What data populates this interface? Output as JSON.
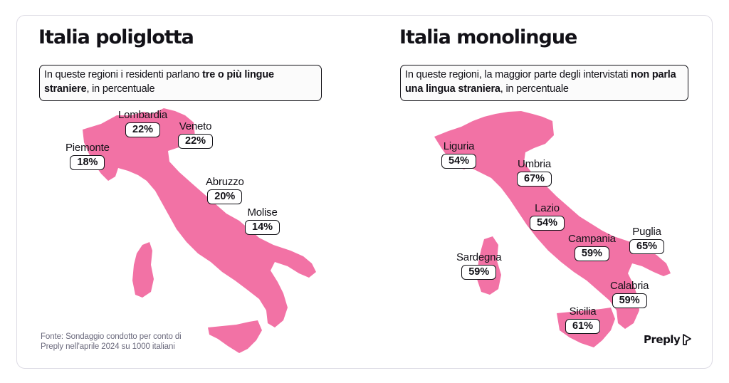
{
  "colors": {
    "map_fill": "#f272a5",
    "text": "#121117",
    "muted": "#6a697c",
    "border": "#dddbe4"
  },
  "left_panel": {
    "title": "Italia poliglotta",
    "note_plain": "In queste regioni i residenti parlano ",
    "note_bold": "tre o più lingue straniere",
    "note_tail": ", in percentuale",
    "regions": [
      {
        "name": "Lombardia",
        "value": "22%"
      },
      {
        "name": "Veneto",
        "value": "22%"
      },
      {
        "name": "Piemonte",
        "value": "18%"
      },
      {
        "name": "Abruzzo",
        "value": "20%"
      },
      {
        "name": "Molise",
        "value": "14%"
      }
    ],
    "source": "Fonte: Sondaggio condotto per conto di Preply nell'aprile 2024 su 1000 italiani"
  },
  "right_panel": {
    "title": "Italia monolingue",
    "note_plain": "In queste regioni, la maggior parte degli intervistati ",
    "note_bold": "non parla una lingua straniera",
    "note_tail": ", in percentuale",
    "regions": [
      {
        "name": "Liguria",
        "value": "54%"
      },
      {
        "name": "Umbria",
        "value": "67%"
      },
      {
        "name": "Lazio",
        "value": "54%"
      },
      {
        "name": "Campania",
        "value": "59%"
      },
      {
        "name": "Puglia",
        "value": "65%"
      },
      {
        "name": "Sardegna",
        "value": "59%"
      },
      {
        "name": "Calabria",
        "value": "59%"
      },
      {
        "name": "Sicilia",
        "value": "61%"
      }
    ],
    "brand": "Preply",
    "brand_icon": "preply-logo-icon"
  }
}
